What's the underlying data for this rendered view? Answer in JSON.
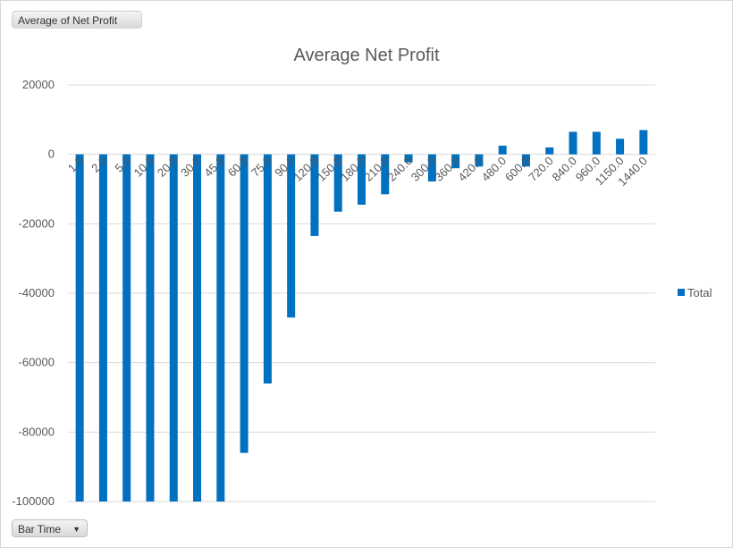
{
  "field_button": {
    "label": "Average of Net Profit"
  },
  "axis_field_button": {
    "label": "Bar Time"
  },
  "chart_data": {
    "type": "bar",
    "title": "Average Net Profit",
    "xlabel": "",
    "ylabel": "",
    "ylim": [
      -100000,
      20000
    ],
    "y_ticks": [
      "20000",
      "0",
      "-20000",
      "-40000",
      "-60000",
      "-80000",
      "-100000"
    ],
    "categories": [
      "1.0",
      "2.0",
      "5.0",
      "10.0",
      "20.0",
      "30.0",
      "45.0",
      "60.0",
      "75.0",
      "90.0",
      "120.0",
      "150.0",
      "180.0",
      "210.0",
      "240.0",
      "300.0",
      "360.0",
      "420.0",
      "480.0",
      "600.0",
      "720.0",
      "840.0",
      "960.0",
      "1150.0",
      "1440.0"
    ],
    "series": [
      {
        "name": "Total",
        "color": "#0070c0",
        "values": [
          -100000,
          -100000,
          -100000,
          -100000,
          -100000,
          -100000,
          -100000,
          -86000,
          -66000,
          -47000,
          -23500,
          -16500,
          -14500,
          -11500,
          -2300,
          -7800,
          -4000,
          -3500,
          2500,
          -3500,
          2000,
          6500,
          6500,
          4500,
          7000
        ]
      }
    ],
    "legend": "right",
    "grid": true
  }
}
